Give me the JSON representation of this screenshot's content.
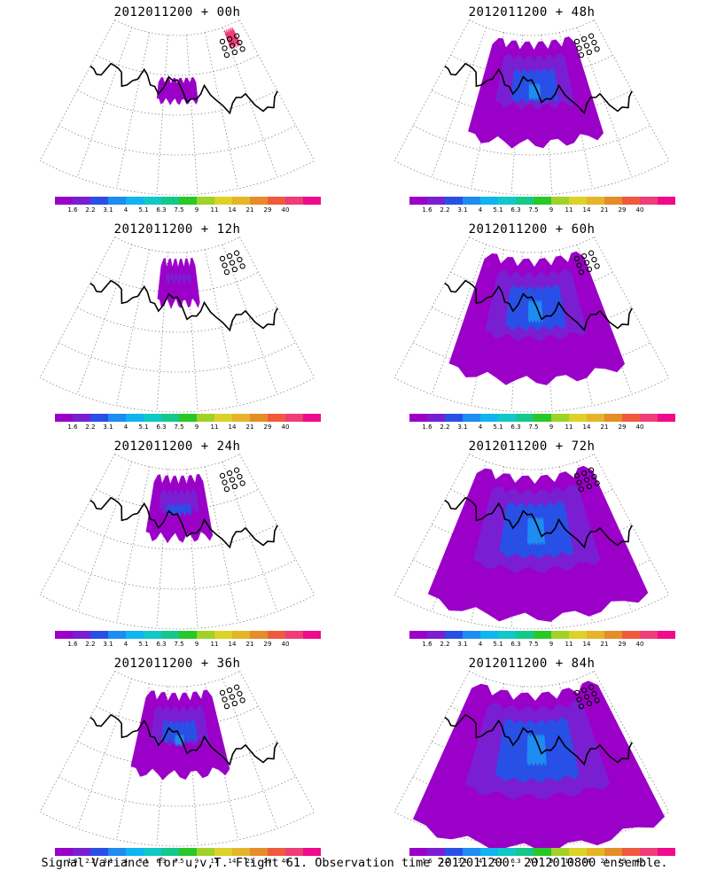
{
  "footer": "Signal Variance for u,v,T. Flight 61. Observation time 2012011200. 2012010800 ensemble.",
  "colorbar": {
    "labels": [
      "1.6",
      "2.2",
      "3.1",
      "4",
      "5.1",
      "6.3",
      "7.5",
      "9",
      "11",
      "14",
      "21",
      "29",
      "40"
    ],
    "colors": [
      "#9b00c8",
      "#7a1ed2",
      "#2850e6",
      "#1e8cf0",
      "#10b4f0",
      "#10c8c8",
      "#14c88c",
      "#28c828",
      "#a0d228",
      "#dcd228",
      "#e6b428",
      "#e68c28",
      "#f05a3c",
      "#f03c78",
      "#f00a8c"
    ]
  },
  "panels": [
    {
      "title": "2012011200 + 00h",
      "level": 0.04
    },
    {
      "title": "2012011200 + 48h",
      "level": 0.55
    },
    {
      "title": "2012011200 + 12h",
      "level": 0.12
    },
    {
      "title": "2012011200 + 60h",
      "level": 0.7
    },
    {
      "title": "2012011200 + 24h",
      "level": 0.25
    },
    {
      "title": "2012011200 + 72h",
      "level": 0.85
    },
    {
      "title": "2012011200 + 36h",
      "level": 0.4
    },
    {
      "title": "2012011200 + 84h",
      "level": 0.95
    }
  ]
}
